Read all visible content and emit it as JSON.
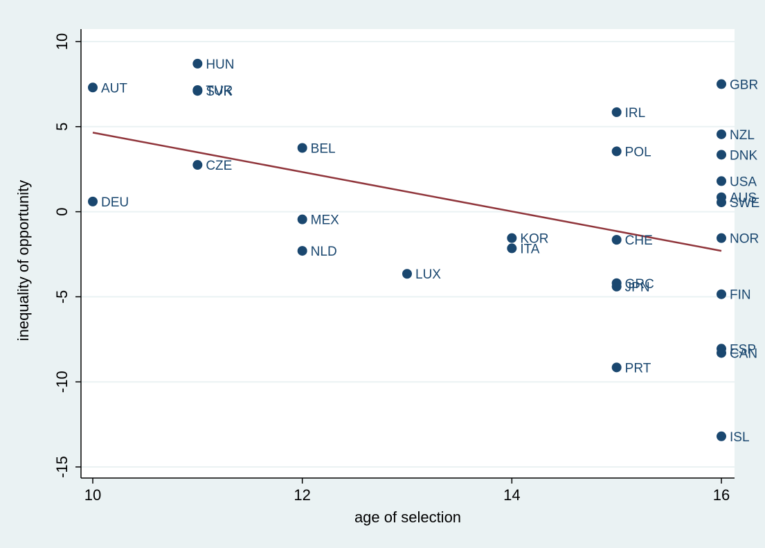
{
  "chart_data": {
    "type": "scatter",
    "title": "",
    "xlabel": "age of selection",
    "ylabel": "inequality of opportunity",
    "xlim": [
      9.9,
      16.12
    ],
    "ylim": [
      -15.8,
      10.8
    ],
    "xticks": [
      10,
      12,
      14,
      16
    ],
    "yticks": [
      10,
      5,
      0,
      -5,
      -10,
      -15
    ],
    "grid": "horizontal",
    "legend": "none",
    "colors": {
      "outer_background": "#eaf2f3",
      "plot_background": "#ffffff",
      "grid": "#eaf2f3",
      "marker": "#1a476f",
      "label": "#1a476f",
      "fit_line": "#90353b",
      "axis": "#000000"
    },
    "points": [
      {
        "label": "AUT",
        "x": 10,
        "y": 7.3
      },
      {
        "label": "DEU",
        "x": 10,
        "y": 0.6
      },
      {
        "label": "HUN",
        "x": 11,
        "y": 8.7
      },
      {
        "label": "TUR",
        "x": 11,
        "y": 7.15
      },
      {
        "label": "SVK",
        "x": 11,
        "y": 7.1
      },
      {
        "label": "CZE",
        "x": 11,
        "y": 2.75
      },
      {
        "label": "BEL",
        "x": 12,
        "y": 3.75
      },
      {
        "label": "MEX",
        "x": 12,
        "y": -0.45
      },
      {
        "label": "NLD",
        "x": 12,
        "y": -2.3
      },
      {
        "label": "LUX",
        "x": 13,
        "y": -3.65
      },
      {
        "label": "KOR",
        "x": 14,
        "y": -1.55
      },
      {
        "label": "ITA",
        "x": 14,
        "y": -2.15
      },
      {
        "label": "IRL",
        "x": 15,
        "y": 5.85
      },
      {
        "label": "POL",
        "x": 15,
        "y": 3.55
      },
      {
        "label": "CHE",
        "x": 15,
        "y": -1.65
      },
      {
        "label": "GRC",
        "x": 15,
        "y": -4.2
      },
      {
        "label": "JPN",
        "x": 15,
        "y": -4.4
      },
      {
        "label": "PRT",
        "x": 15,
        "y": -9.15
      },
      {
        "label": "GBR",
        "x": 16,
        "y": 7.5
      },
      {
        "label": "NZL",
        "x": 16,
        "y": 4.55
      },
      {
        "label": "DNK",
        "x": 16,
        "y": 3.35
      },
      {
        "label": "USA",
        "x": 16,
        "y": 1.8
      },
      {
        "label": "AUS",
        "x": 16,
        "y": 0.85
      },
      {
        "label": "SWE",
        "x": 16,
        "y": 0.55
      },
      {
        "label": "NOR",
        "x": 16,
        "y": -1.55
      },
      {
        "label": "FIN",
        "x": 16,
        "y": -4.85
      },
      {
        "label": "ESP",
        "x": 16,
        "y": -8.05
      },
      {
        "label": "CAN",
        "x": 16,
        "y": -8.3
      },
      {
        "label": "ISL",
        "x": 16,
        "y": -13.2
      }
    ],
    "fit_line": {
      "x": [
        10,
        16
      ],
      "y": [
        4.65,
        -2.3
      ]
    }
  }
}
